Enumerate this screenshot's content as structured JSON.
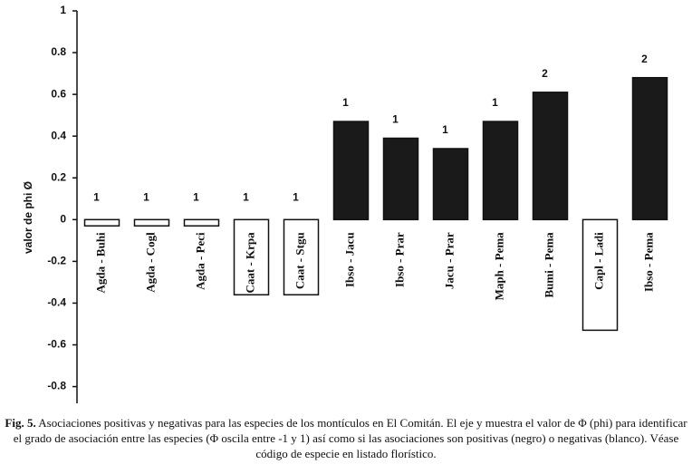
{
  "chart_data": {
    "type": "bar",
    "y_label": "valor de phi  Ø",
    "categories": [
      "Agda - Buhi",
      "Agda - Cogl",
      "Agda - Peci",
      "Caat - Krpa",
      "Caat - Stgu",
      "Ibso - Jacu",
      "Ibso - Prar",
      "Jacu - Prar",
      "Maph - Pema",
      "Bumi - Pema",
      "Capl - Ladi",
      "Ibso - Pema"
    ],
    "values": [
      -0.03,
      -0.03,
      -0.03,
      -0.36,
      -0.36,
      0.47,
      0.39,
      0.34,
      0.47,
      0.61,
      -0.53,
      0.68
    ],
    "colors": [
      "#ffffff",
      "#ffffff",
      "#ffffff",
      "#ffffff",
      "#ffffff",
      "#1a1a1a",
      "#1a1a1a",
      "#1a1a1a",
      "#1a1a1a",
      "#1a1a1a",
      "#ffffff",
      "#1a1a1a"
    ],
    "bar_labels": [
      "1",
      "1",
      "1",
      "1",
      "1",
      "1",
      "1",
      "1",
      "1",
      "2",
      null,
      "2"
    ],
    "ylim": [
      -0.88,
      1
    ],
    "yticks": [
      1,
      0.8,
      0.6,
      0.4,
      0.2,
      0,
      -0.2,
      -0.4,
      -0.6,
      -0.8
    ],
    "caption_label": "Fig. 5.",
    "caption": "Asociaciones positivas y negativas para las especies de los montículos en El Comitán. El eje y muestra el valor de Φ (phi) para identificar el grado de asociación entre las especies (Φ oscila entre -1 y 1) así como si las asociaciones son positivas (negro) o negativas (blanco).  Véase código de especie en listado florístico."
  }
}
